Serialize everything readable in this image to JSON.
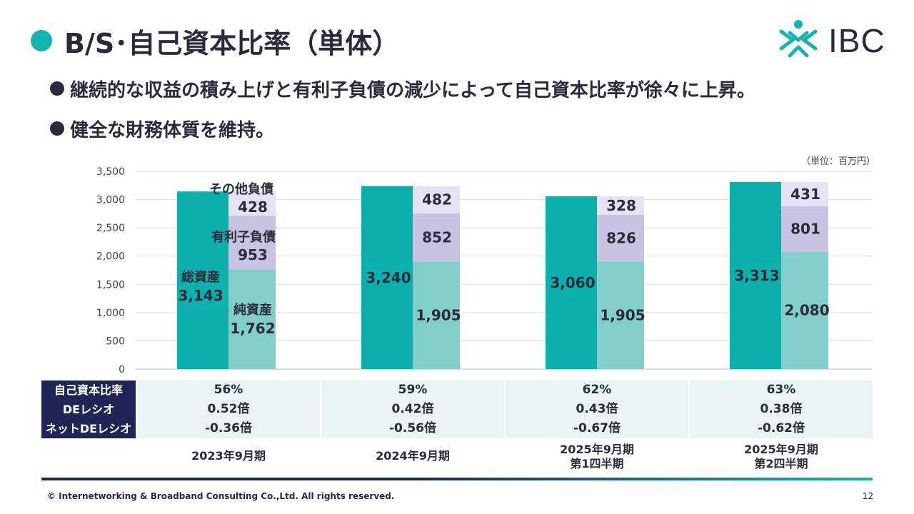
{
  "slide": {
    "title": "B/S･自己資本比率（単体）",
    "logo_text": "IBC",
    "bullets": [
      "継続的な収益の積み上げと有利子負債の減少によって自己資本比率が徐々に上昇。",
      "健全な財務体質を維持。"
    ],
    "unit_note": "（単位：百万円）",
    "copyright": "© Internetworking & Broadband Consulting Co.,Ltd. All rights reserved.",
    "page_number": "12"
  },
  "colors": {
    "accent": "#15b3ad",
    "navy": "#1f2556",
    "total_assets": "#0bb0ac",
    "net_assets": "#82cecd",
    "interest_debt": "#c8c3e3",
    "other_liab": "#e4e2f3"
  },
  "chart_data": {
    "type": "bar",
    "categories": [
      "2023年9月期",
      "2024年9月期",
      "2025年9月期\n第1四半期",
      "2025年9月期\n第2四半期"
    ],
    "ylim": [
      0,
      3500
    ],
    "yticks": [
      "0",
      "500",
      "1,000",
      "1,500",
      "2,000",
      "2,500",
      "3,000",
      "3,500"
    ],
    "ytick_values": [
      0,
      500,
      1000,
      1500,
      2000,
      2500,
      3000,
      3500
    ],
    "grid": true,
    "series": [
      {
        "name": "総資産",
        "values": [
          3143,
          3240,
          3060,
          3313
        ],
        "labels": [
          "3,143",
          "3,240",
          "3,060",
          "3,313"
        ]
      },
      {
        "name": "純資産",
        "values": [
          1762,
          1905,
          1905,
          2080
        ],
        "labels": [
          "1,762",
          "1,905",
          "1,905",
          "2,080"
        ]
      },
      {
        "name": "有利子負債",
        "values": [
          953,
          852,
          826,
          801
        ],
        "labels": [
          "953",
          "852",
          "826",
          "801"
        ]
      },
      {
        "name": "その他負債",
        "values": [
          428,
          482,
          328,
          431
        ],
        "labels": [
          "428",
          "482",
          "328",
          "431"
        ]
      }
    ]
  },
  "table": {
    "rows": [
      {
        "label": "自己資本比率",
        "values": [
          "56%",
          "59%",
          "62%",
          "63%"
        ]
      },
      {
        "label": "DEレシオ",
        "values": [
          "0.52倍",
          "0.42倍",
          "0.43倍",
          "0.38倍"
        ]
      },
      {
        "label": "ネットDEレシオ",
        "values": [
          "-0.36倍",
          "-0.56倍",
          "-0.67倍",
          "-0.62倍"
        ]
      }
    ],
    "periods": [
      [
        "2023年9月期"
      ],
      [
        "2024年9月期"
      ],
      [
        "2025年9月期",
        "第1四半期"
      ],
      [
        "2025年9月期",
        "第2四半期"
      ]
    ]
  }
}
